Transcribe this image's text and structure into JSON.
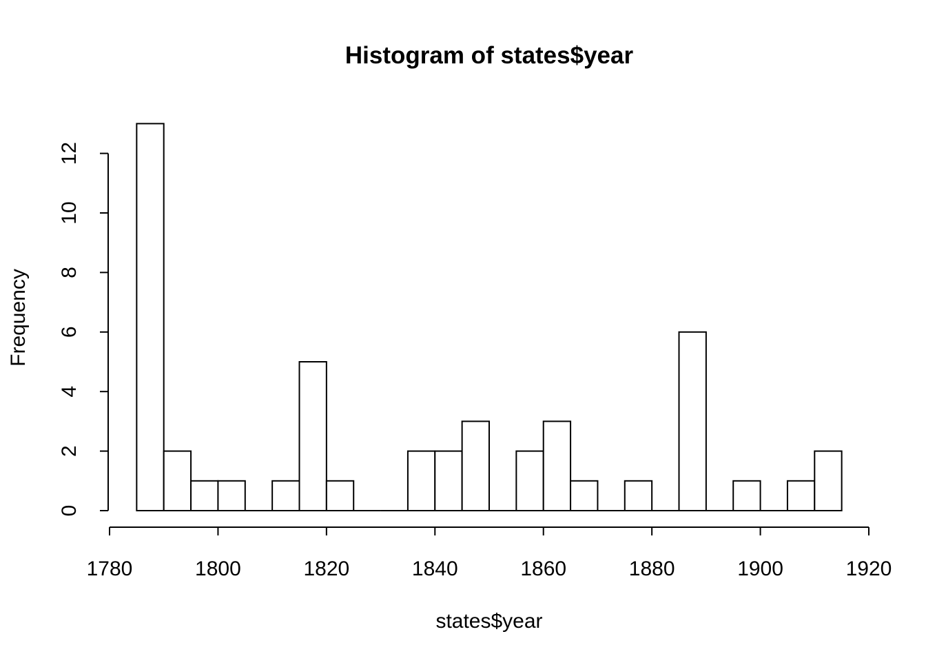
{
  "chart_data": {
    "type": "bar",
    "title": "Histogram of states$year",
    "xlabel": "states$year",
    "ylabel": "Frequency",
    "bins": [
      {
        "start": 1785,
        "end": 1790,
        "count": 13
      },
      {
        "start": 1790,
        "end": 1795,
        "count": 2
      },
      {
        "start": 1795,
        "end": 1800,
        "count": 1
      },
      {
        "start": 1800,
        "end": 1805,
        "count": 1
      },
      {
        "start": 1805,
        "end": 1810,
        "count": 0
      },
      {
        "start": 1810,
        "end": 1815,
        "count": 1
      },
      {
        "start": 1815,
        "end": 1820,
        "count": 5
      },
      {
        "start": 1820,
        "end": 1825,
        "count": 1
      },
      {
        "start": 1825,
        "end": 1830,
        "count": 0
      },
      {
        "start": 1830,
        "end": 1835,
        "count": 0
      },
      {
        "start": 1835,
        "end": 1840,
        "count": 2
      },
      {
        "start": 1840,
        "end": 1845,
        "count": 2
      },
      {
        "start": 1845,
        "end": 1850,
        "count": 3
      },
      {
        "start": 1850,
        "end": 1855,
        "count": 0
      },
      {
        "start": 1855,
        "end": 1860,
        "count": 2
      },
      {
        "start": 1860,
        "end": 1865,
        "count": 3
      },
      {
        "start": 1865,
        "end": 1870,
        "count": 1
      },
      {
        "start": 1870,
        "end": 1875,
        "count": 0
      },
      {
        "start": 1875,
        "end": 1880,
        "count": 1
      },
      {
        "start": 1880,
        "end": 1885,
        "count": 0
      },
      {
        "start": 1885,
        "end": 1890,
        "count": 6
      },
      {
        "start": 1890,
        "end": 1895,
        "count": 0
      },
      {
        "start": 1895,
        "end": 1900,
        "count": 1
      },
      {
        "start": 1900,
        "end": 1905,
        "count": 0
      },
      {
        "start": 1905,
        "end": 1910,
        "count": 1
      },
      {
        "start": 1910,
        "end": 1915,
        "count": 2
      }
    ],
    "xlim": [
      1780,
      1920
    ],
    "ylim": [
      0,
      13
    ],
    "x_ticks": [
      1780,
      1800,
      1820,
      1840,
      1860,
      1880,
      1900,
      1920
    ],
    "y_ticks": [
      0,
      2,
      4,
      6,
      8,
      10,
      12
    ],
    "grid": false,
    "bar_fill": "#ffffff",
    "bar_stroke": "#000000"
  }
}
